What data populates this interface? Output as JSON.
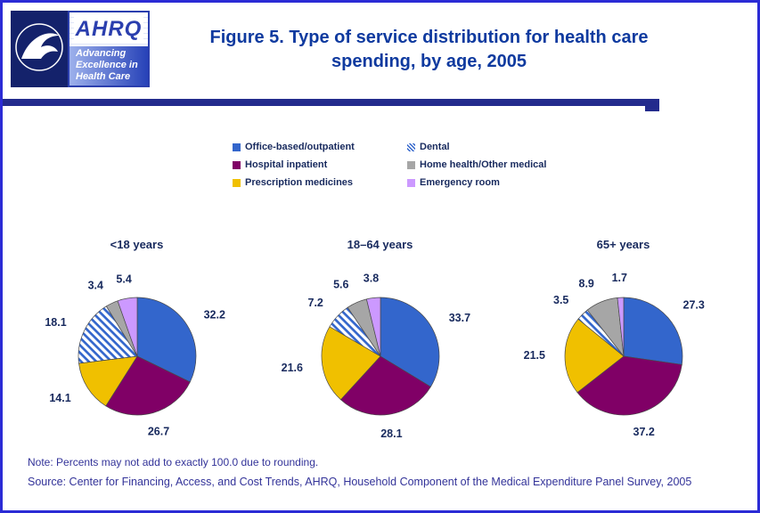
{
  "page": {
    "title_line1": "Figure 5. Type of service distribution for health care",
    "title_line2": "spending, by age, 2005",
    "note": "Note: Percents may not add to exactly 100.0 due to rounding.",
    "source": "Source: Center for Financing, Access, and Cost Trends, AHRQ, Household Component of the Medical Expenditure Panel Survey, 2005"
  },
  "logo": {
    "acronym": "AHRQ",
    "tagline_line1": "Advancing",
    "tagline_line2": "Excellence in",
    "tagline_line3": "Health Care"
  },
  "chart_data": {
    "type": "pie",
    "title": "Figure 5. Type of service distribution for health care spending, by age, 2005",
    "unit": "percent",
    "legend_position": "top",
    "slice_keys": [
      "office",
      "hospital",
      "prescription",
      "dental",
      "home_health",
      "emergency"
    ],
    "categories": [
      "Office-based/outpatient",
      "Hospital inpatient",
      "Prescription medicines",
      "Dental",
      "Home health/Other medical",
      "Emergency room"
    ],
    "colors": {
      "office": "#3366CC",
      "hospital": "#800066",
      "prescription": "#F0C000",
      "dental": "#3366CC",
      "dental_style": "blue-diagonal-hatch-on-white",
      "home_health": "#A6A6A6",
      "emergency": "#CC99FF"
    },
    "charts": [
      {
        "title": "<18 years",
        "values": [
          32.2,
          26.7,
          14.1,
          18.1,
          3.4,
          5.4
        ]
      },
      {
        "title": "18–64 years",
        "values": [
          33.7,
          28.1,
          21.6,
          7.2,
          5.6,
          3.8
        ]
      },
      {
        "title": "65+ years",
        "values": [
          27.3,
          37.2,
          21.5,
          3.5,
          8.9,
          1.7
        ]
      }
    ]
  }
}
